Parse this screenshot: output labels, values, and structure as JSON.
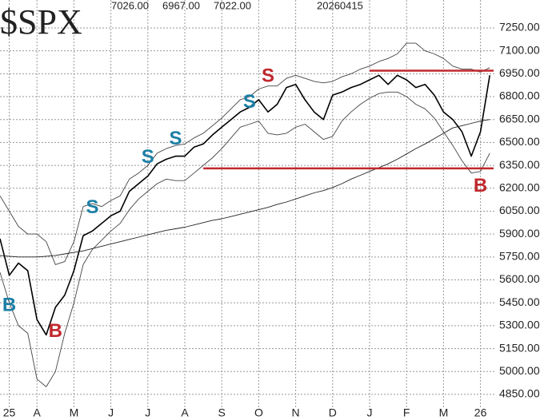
{
  "chart_data": {
    "type": "line",
    "title": "$SPX",
    "quote": [
      "7026.00",
      "6967.00",
      "7022.00"
    ],
    "date": "20260415",
    "categories": [
      null,
      "25",
      null,
      null,
      "A",
      null,
      null,
      null,
      "M",
      null,
      null,
      null,
      "J",
      null,
      null,
      null,
      "J",
      null,
      null,
      null,
      "A",
      null,
      null,
      null,
      "S",
      null,
      null,
      null,
      "O",
      null,
      null,
      null,
      "N",
      null,
      null,
      null,
      "D",
      null,
      null,
      null,
      "J",
      null,
      null,
      null,
      "F",
      null,
      null,
      null,
      "M",
      null,
      null,
      null,
      "26",
      null
    ],
    "series": [
      {
        "color": "#000000",
        "width": 1.6,
        "values": [
          5870,
          5630,
          5710,
          5660,
          5340,
          5240,
          5420,
          5500,
          5660,
          5890,
          5920,
          5970,
          6020,
          6050,
          6180,
          6230,
          6280,
          6360,
          6390,
          6410,
          6410,
          6470,
          6490,
          6550,
          6600,
          6650,
          6700,
          6730,
          6780,
          6700,
          6750,
          6860,
          6880,
          6780,
          6700,
          6650,
          6810,
          6830,
          6860,
          6880,
          6910,
          6940,
          6880,
          6940,
          6910,
          6860,
          6880,
          6810,
          6700,
          6650,
          6570,
          6410,
          6570,
          6940
        ]
      },
      {
        "color": "#444444",
        "width": 0.9,
        "values": [
          6150,
          6050,
          5950,
          5900,
          5900,
          5850,
          5700,
          5720,
          5850,
          6080,
          6100,
          6080,
          6120,
          6150,
          6260,
          6300,
          6350,
          6430,
          6460,
          6480,
          6490,
          6530,
          6560,
          6610,
          6660,
          6720,
          6780,
          6800,
          6850,
          6870,
          6870,
          6920,
          6940,
          6920,
          6900,
          6890,
          6900,
          6930,
          6950,
          6980,
          7000,
          7030,
          7050,
          7080,
          7150,
          7150,
          7100,
          7080,
          7050,
          7000,
          6980,
          6980,
          6960,
          6990
        ]
      },
      {
        "color": "#444444",
        "width": 0.9,
        "values": [
          5650,
          5450,
          5300,
          5250,
          4950,
          4900,
          5000,
          5250,
          5450,
          5700,
          5800,
          5860,
          5920,
          5970,
          6060,
          6130,
          6180,
          6230,
          6260,
          6250,
          6250,
          6300,
          6350,
          6400,
          6460,
          6530,
          6600,
          6620,
          6640,
          6560,
          6550,
          6560,
          6600,
          6620,
          6570,
          6520,
          6540,
          6640,
          6700,
          6750,
          6790,
          6820,
          6830,
          6830,
          6800,
          6750,
          6720,
          6660,
          6570,
          6480,
          6380,
          6300,
          6310,
          6430
        ]
      },
      {
        "color": "#222222",
        "width": 0.9,
        "values": [
          5760,
          5755,
          5750,
          5750,
          5750,
          5755,
          5760,
          5770,
          5780,
          5790,
          5805,
          5820,
          5835,
          5850,
          5865,
          5880,
          5895,
          5910,
          5925,
          5935,
          5945,
          5960,
          5975,
          5990,
          6000,
          6015,
          6030,
          6045,
          6060,
          6075,
          6095,
          6110,
          6130,
          6150,
          6170,
          6185,
          6205,
          6230,
          6260,
          6285,
          6310,
          6335,
          6360,
          6390,
          6425,
          6460,
          6490,
          6525,
          6560,
          6595,
          6610,
          6625,
          6640,
          6650
        ]
      }
    ],
    "hlines": [
      {
        "value": 6970,
        "start": 40,
        "color": "#c0282d"
      },
      {
        "value": 6330,
        "start": 22,
        "color": "#c0282d"
      }
    ],
    "signals": [
      {
        "label": "B",
        "index": 1,
        "value": 5430,
        "color": "#1c7fa6"
      },
      {
        "label": "B",
        "index": 6,
        "value": 5260,
        "color": "#c0282d"
      },
      {
        "label": "S",
        "index": 10,
        "value": 6070,
        "color": "#1c7fa6"
      },
      {
        "label": "S",
        "index": 16,
        "value": 6400,
        "color": "#1c7fa6"
      },
      {
        "label": "S",
        "index": 19,
        "value": 6520,
        "color": "#1c7fa6"
      },
      {
        "label": "S",
        "index": 27,
        "value": 6760,
        "color": "#1c7fa6"
      },
      {
        "label": "S",
        "index": 29,
        "value": 6930,
        "color": "#c0282d"
      },
      {
        "label": "B",
        "index": 52,
        "value": 6210,
        "color": "#c0282d"
      }
    ],
    "ylim": [
      4766,
      7433
    ],
    "yticks": [
      {
        "value": 4850,
        "label": "4850.00"
      },
      {
        "value": 5000,
        "label": "5000.00"
      },
      {
        "value": 5150,
        "label": "5150.00"
      },
      {
        "value": 5300,
        "label": "5300.00"
      },
      {
        "value": 5450,
        "label": "5450.00"
      },
      {
        "value": 5600,
        "label": "5600.00"
      },
      {
        "value": 5750,
        "label": "5750.00"
      },
      {
        "value": 5900,
        "label": "5900.00"
      },
      {
        "value": 6050,
        "label": "6050.00"
      },
      {
        "value": 6200,
        "label": "6200.00"
      },
      {
        "value": 6350,
        "label": "6350.00"
      },
      {
        "value": 6500,
        "label": "6500.00"
      },
      {
        "value": 6650,
        "label": "6650.00"
      },
      {
        "value": 6800,
        "label": "6800.00"
      },
      {
        "value": 6950,
        "label": "6950.00"
      },
      {
        "value": 7100,
        "label": "7100.00"
      },
      {
        "value": 7250,
        "label": "7250.00"
      }
    ],
    "grid": true
  }
}
